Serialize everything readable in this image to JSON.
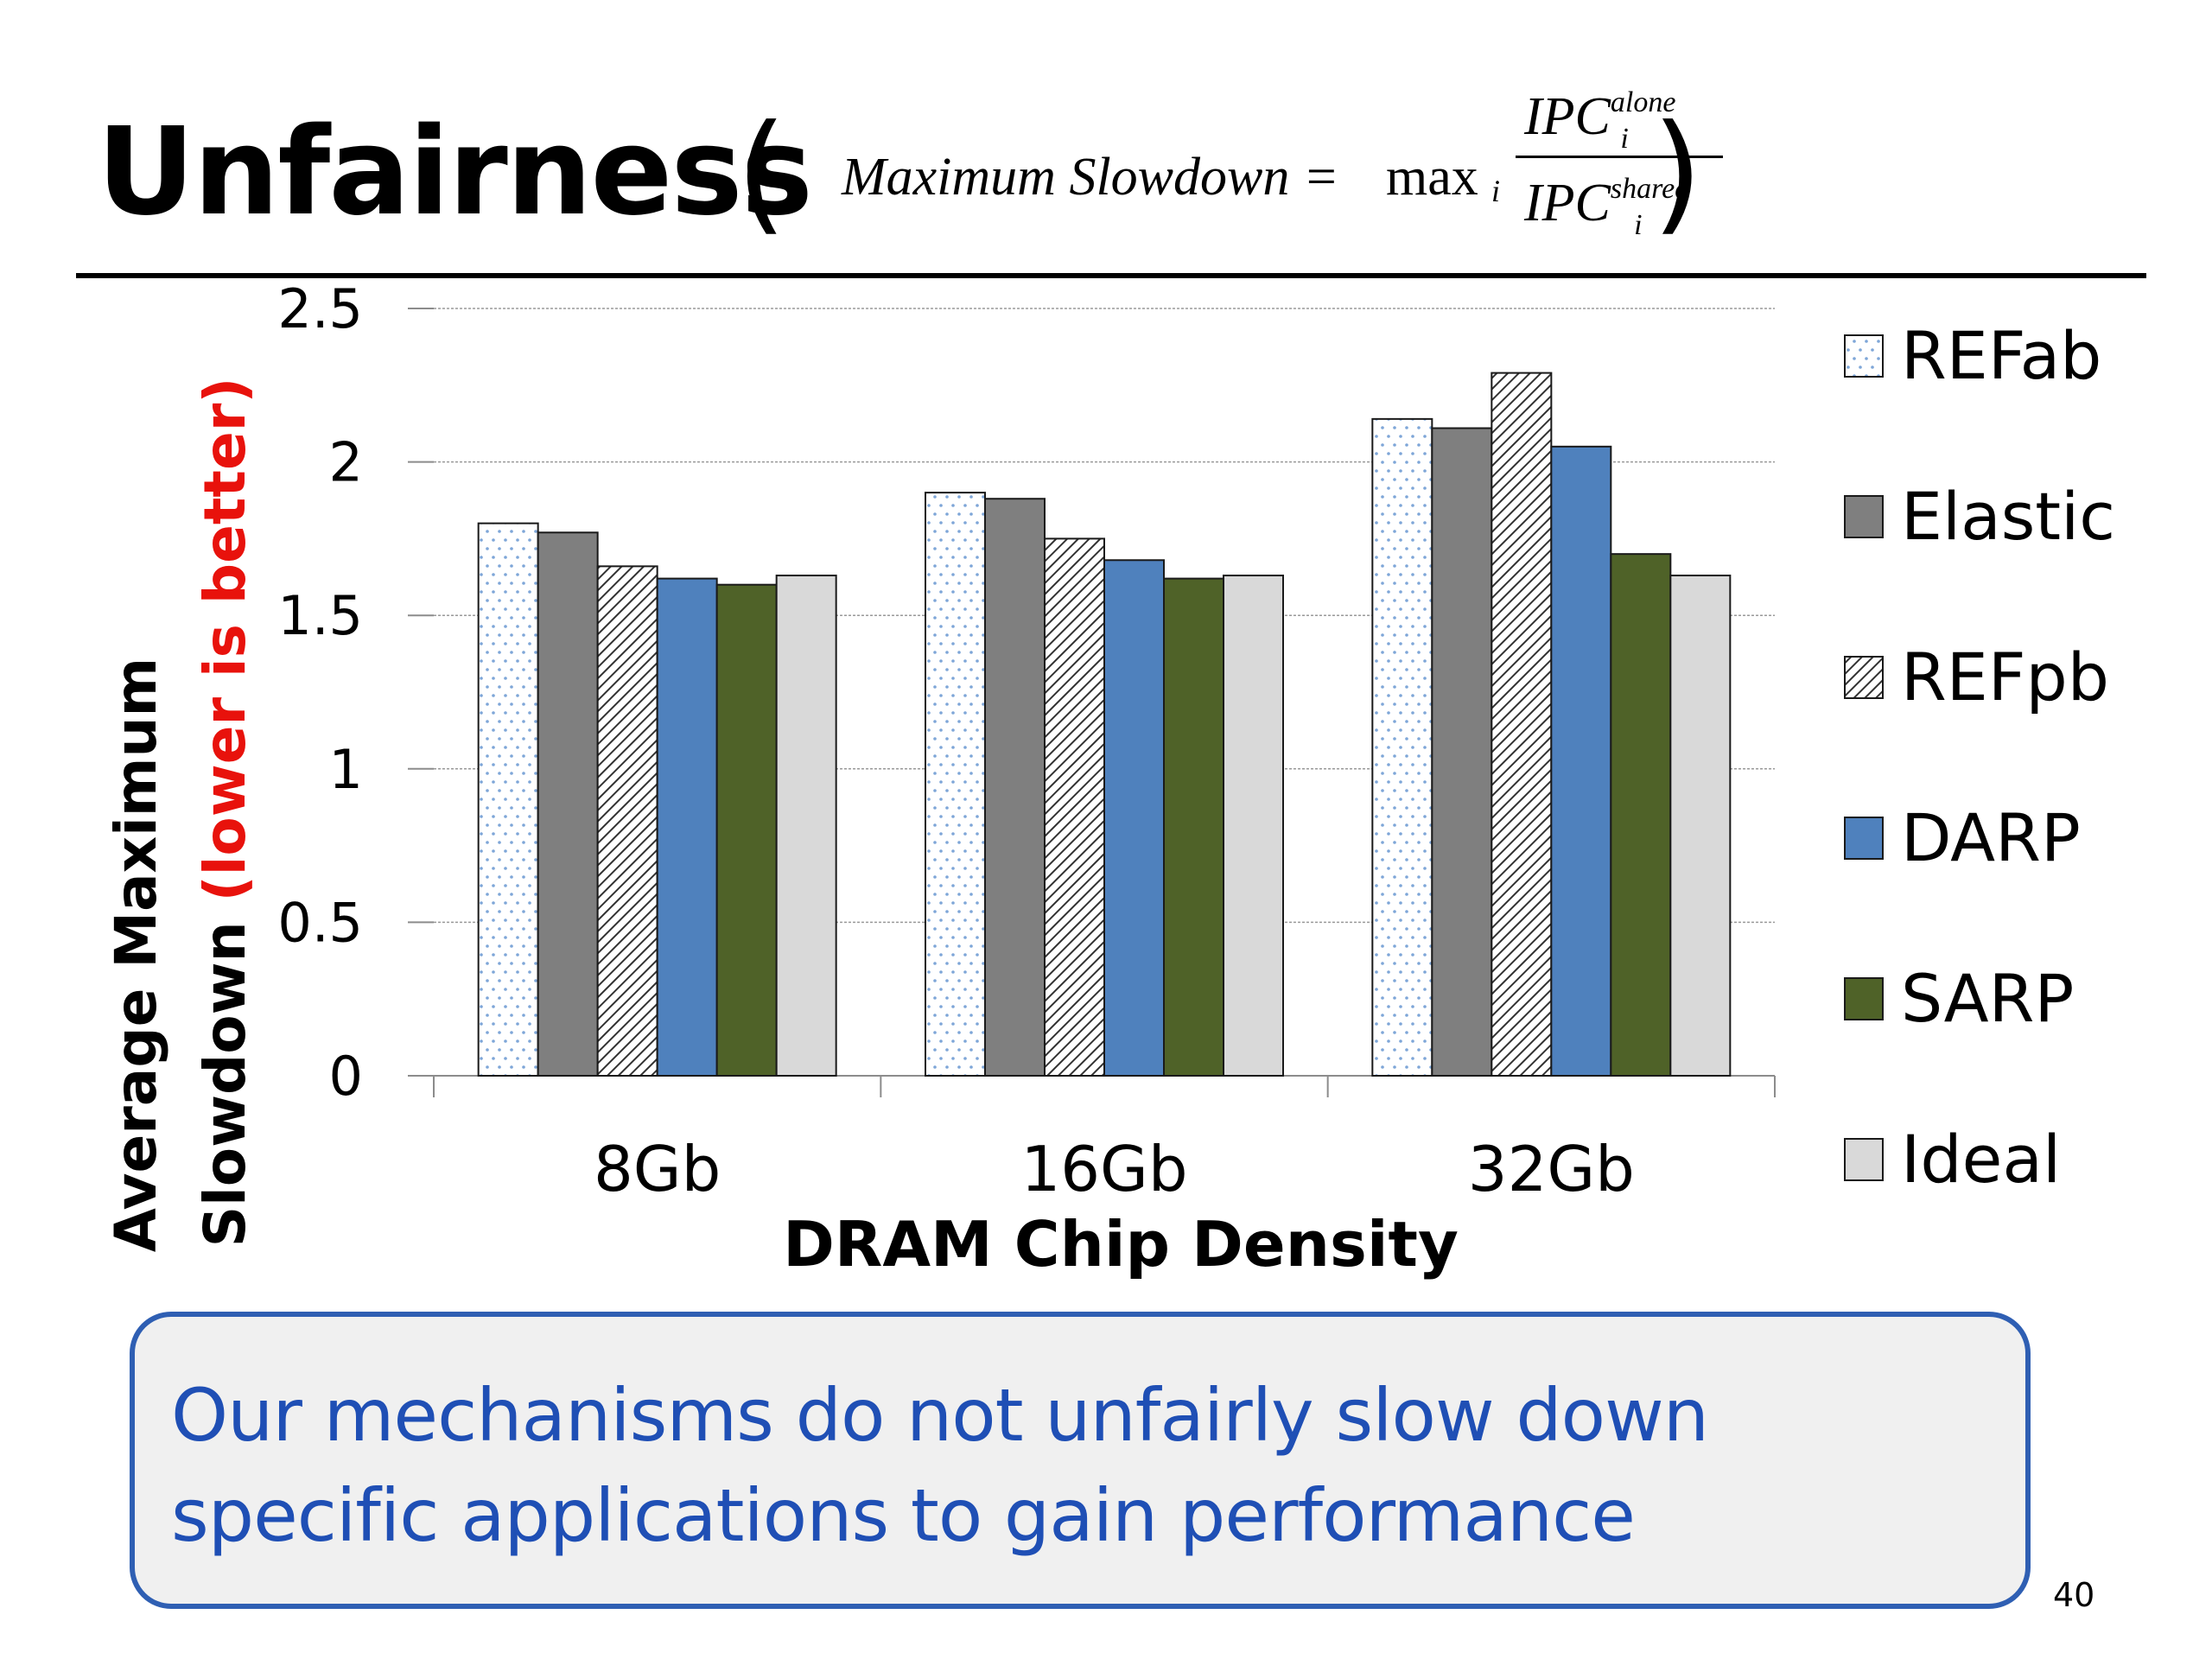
{
  "slide": {
    "title": "Unfairness",
    "open_paren": "(",
    "close_paren": ")",
    "formula": {
      "lhs": "Maximum Slowdown =",
      "operator": "max",
      "operator_sub": "i",
      "numerator": "IPC",
      "numerator_sup": "alone",
      "numerator_sub": "i",
      "denominator": "IPC",
      "denominator_sup": "shared",
      "denominator_sub": "i"
    },
    "callout_line1": "Our mechanisms do not unfairly slow down",
    "callout_line2": "specific applications to gain performance",
    "slide_number": "40",
    "colors": {
      "title_rule": "#000000",
      "callout_border": "#2f5fb3",
      "callout_background": "#f0f0f0",
      "callout_text": "#1f4fb5"
    }
  },
  "chart_data": {
    "type": "bar",
    "title": "",
    "xlabel": "DRAM Chip Density",
    "ylabel_part1": "Average Maximum",
    "ylabel_part2": "Slowdown ",
    "ylabel_part3": "(lower is better)",
    "ylabel_highlight_color": "#e8120c",
    "ylim": [
      0,
      2.5
    ],
    "yticks": [
      "0",
      "0.5",
      "1",
      "1.5",
      "2",
      "2.5"
    ],
    "grid": true,
    "legend_position": "right",
    "categories": [
      "8Gb",
      "16Gb",
      "32Gb"
    ],
    "series": [
      {
        "name": "REFab",
        "values": [
          1.8,
          1.9,
          2.14
        ],
        "color": "#ffffff",
        "pattern": "dots"
      },
      {
        "name": "Elastic",
        "values": [
          1.77,
          1.88,
          2.11
        ],
        "color": "#7f7f7f",
        "pattern": "solid"
      },
      {
        "name": "REFpb",
        "values": [
          1.66,
          1.75,
          2.29
        ],
        "color": "#ffffff",
        "pattern": "diagonal-hatch"
      },
      {
        "name": "DARP",
        "values": [
          1.62,
          1.68,
          2.05
        ],
        "color": "#4f81bd",
        "pattern": "solid"
      },
      {
        "name": "SARP",
        "values": [
          1.6,
          1.62,
          1.7
        ],
        "color": "#4f6228",
        "pattern": "solid"
      },
      {
        "name": "Ideal",
        "values": [
          1.63,
          1.63,
          1.63
        ],
        "color": "#d9d9d9",
        "pattern": "solid"
      }
    ]
  }
}
